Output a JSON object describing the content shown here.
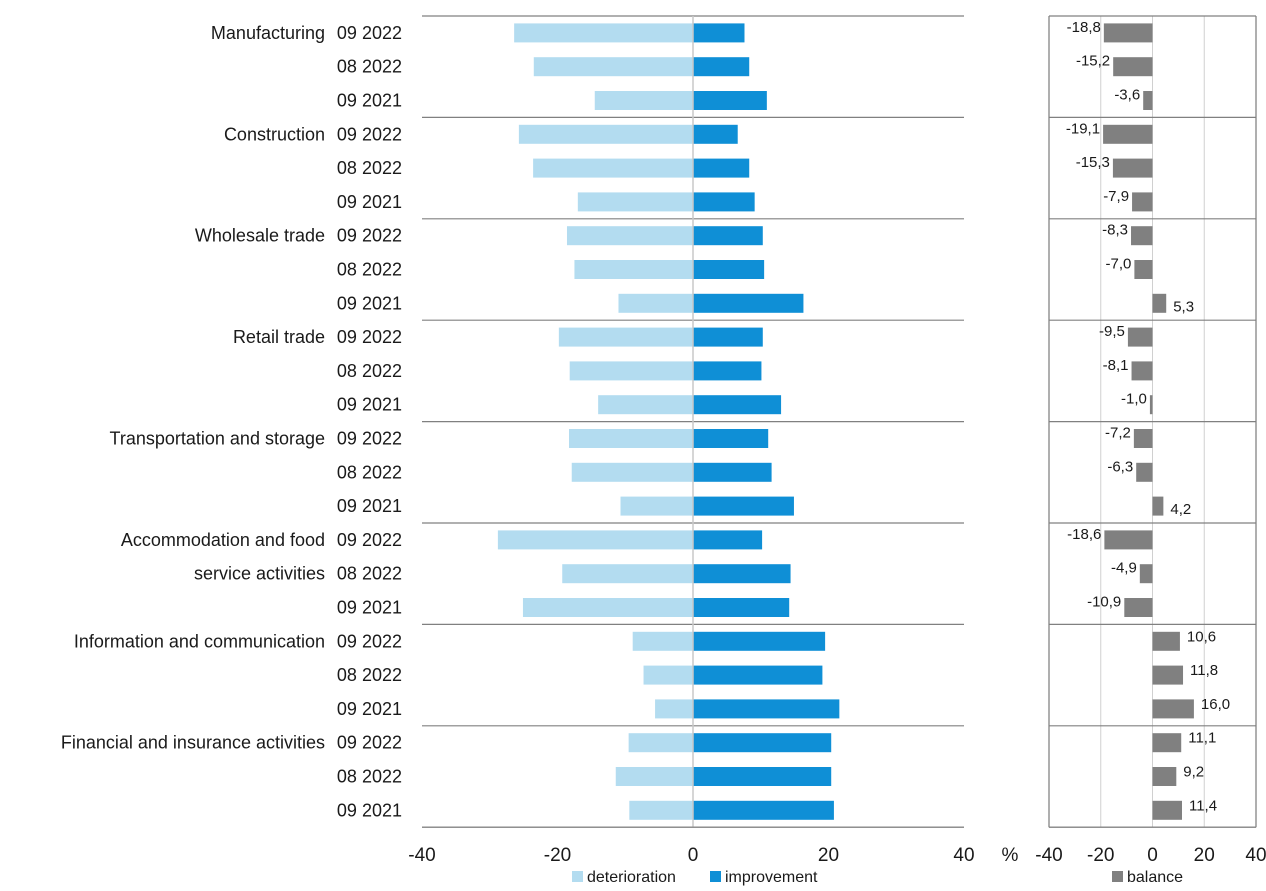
{
  "chart_data": [
    {
      "type": "bar",
      "orientation": "horizontal",
      "groups": [
        "Manufacturing",
        "Construction",
        "Wholesale trade",
        "Retail trade",
        "Transportation and storage",
        "Accommodation and food service activities",
        "Information and communication",
        "Financial and insurance activities"
      ],
      "group_label_lines": [
        [
          "Manufacturing",
          ""
        ],
        [
          "Construction",
          ""
        ],
        [
          "Wholesale trade",
          ""
        ],
        [
          "Retail trade",
          ""
        ],
        [
          "Transportation and storage",
          ""
        ],
        [
          "Accommodation and food",
          "service activities"
        ],
        [
          "Information and communication",
          ""
        ],
        [
          "Financial and insurance activities",
          ""
        ]
      ],
      "periods": [
        "09 2022",
        "08 2022",
        "09 2021"
      ],
      "series": [
        {
          "name": "deterioration",
          "color": "#b3dcf0",
          "values": [
            [
              -26.4,
              -23.5,
              -14.5
            ],
            [
              -25.7,
              -23.6,
              -17.0
            ],
            [
              -18.6,
              -17.5,
              -11.0
            ],
            [
              -19.8,
              -18.2,
              -14.0
            ],
            [
              -18.3,
              -17.9,
              -10.7
            ],
            [
              -28.8,
              -19.3,
              -25.1
            ],
            [
              -8.9,
              -7.3,
              -5.6
            ],
            [
              -9.5,
              -11.4,
              -9.4
            ]
          ]
        },
        {
          "name": "improvement",
          "color": "#0f8fd6",
          "values": [
            [
              7.6,
              8.3,
              10.9
            ],
            [
              6.6,
              8.3,
              9.1
            ],
            [
              10.3,
              10.5,
              16.3
            ],
            [
              10.3,
              10.1,
              13.0
            ],
            [
              11.1,
              11.6,
              14.9
            ],
            [
              10.2,
              14.4,
              14.2
            ],
            [
              19.5,
              19.1,
              21.6
            ],
            [
              20.4,
              20.4,
              20.8
            ]
          ]
        }
      ],
      "xlim": [
        -40,
        40
      ],
      "xticks": [
        -40,
        -20,
        0,
        20,
        40
      ],
      "unit_label": "%"
    },
    {
      "type": "bar",
      "orientation": "horizontal",
      "series": [
        {
          "name": "balance",
          "color": "#808080",
          "values": [
            [
              -18.8,
              -15.2,
              -3.6
            ],
            [
              -19.1,
              -15.3,
              -7.9
            ],
            [
              -8.3,
              -7.0,
              5.3
            ],
            [
              -9.5,
              -8.1,
              -1.0
            ],
            [
              -7.2,
              -6.3,
              4.2
            ],
            [
              -18.6,
              -4.9,
              -10.9
            ],
            [
              10.6,
              11.8,
              16.0
            ],
            [
              11.1,
              9.2,
              11.4
            ]
          ],
          "labels": [
            [
              "-18,8",
              "-15,2",
              "-3,6"
            ],
            [
              "-19,1",
              "-15,3",
              "-7,9"
            ],
            [
              "-8,3",
              "-7,0",
              "5,3"
            ],
            [
              "-9,5",
              "-8,1",
              "-1,0"
            ],
            [
              "-7,2",
              "-6,3",
              "4,2"
            ],
            [
              "-18,6",
              "-4,9",
              "-10,9"
            ],
            [
              "10,6",
              "11,8",
              "16,0"
            ],
            [
              "11,1",
              "9,2",
              "11,4"
            ]
          ]
        }
      ],
      "xlim": [
        -40,
        40
      ],
      "xticks": [
        -40,
        -20,
        0,
        20,
        40
      ],
      "grid": true
    }
  ]
}
